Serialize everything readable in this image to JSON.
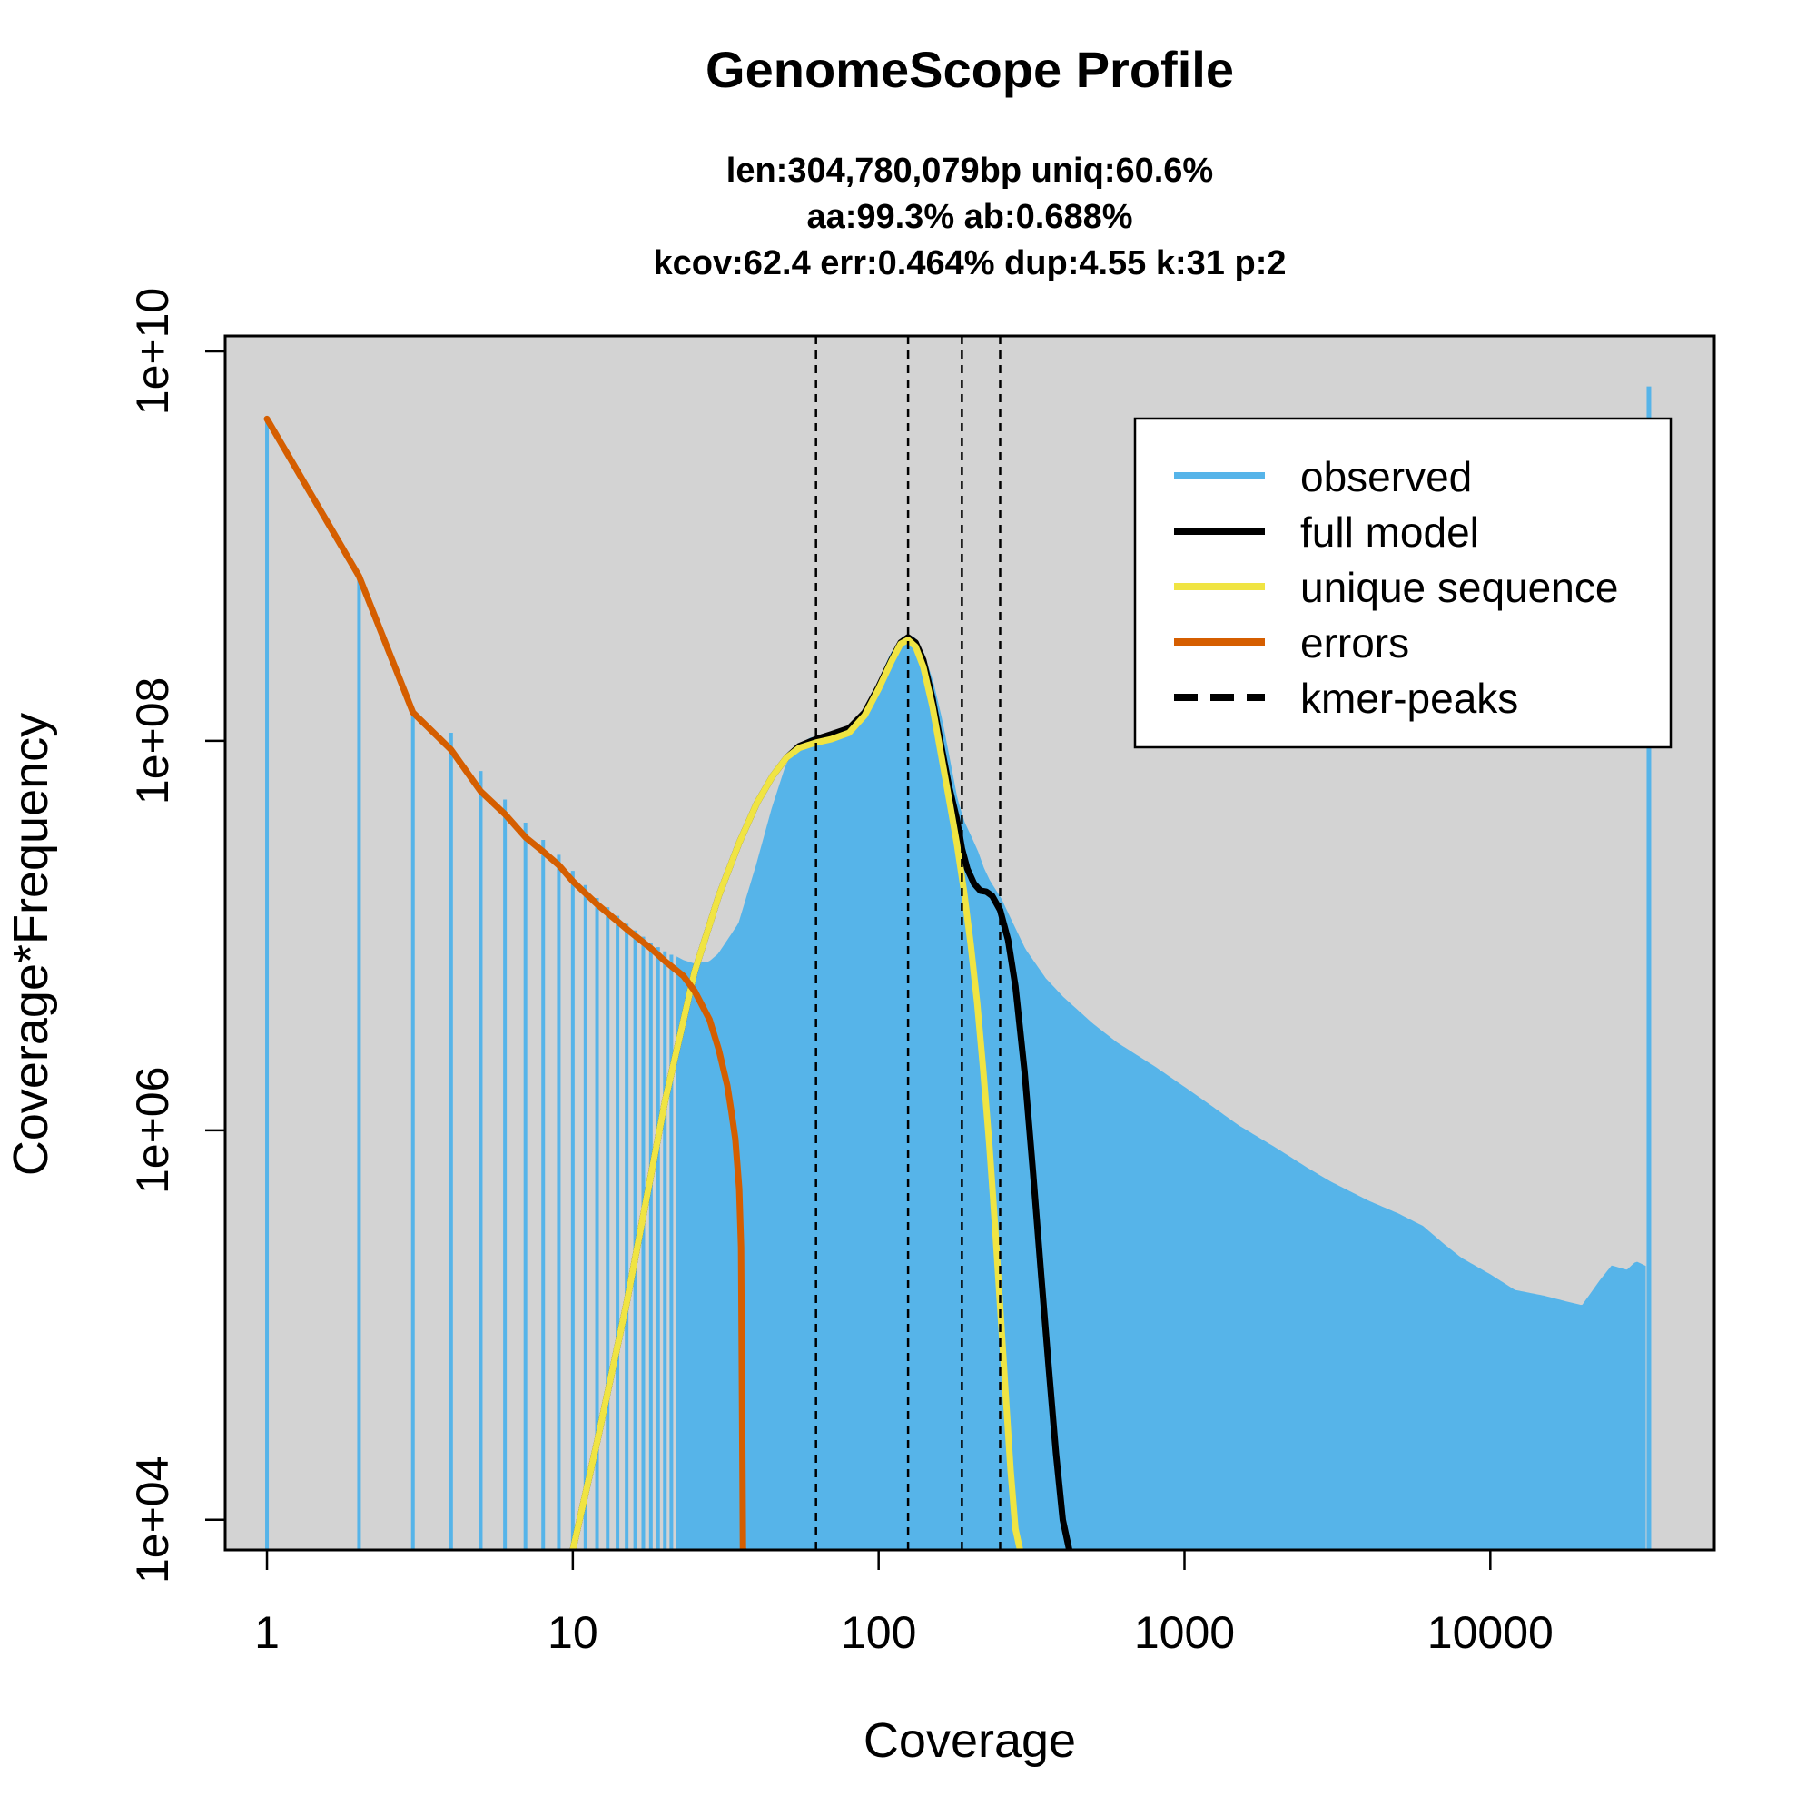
{
  "chart_data": {
    "type": "line",
    "title": "GenomeScope Profile",
    "subtitle_lines": [
      "len:304,780,079bp uniq:60.6%",
      "aa:99.3% ab:0.688%",
      "kcov:62.4 err:0.464%  dup:4.55  k:31 p:2"
    ],
    "xlabel": "Coverage",
    "ylabel": "Coverage*Frequency",
    "x_scale": "log",
    "y_scale": "log",
    "xlim": [
      0.73,
      54000
    ],
    "ylim": [
      7000,
      12000000000
    ],
    "x_ticks": [
      1,
      10,
      100,
      1000,
      10000
    ],
    "x_tick_labels": [
      "1",
      "10",
      "100",
      "1000",
      "10000"
    ],
    "y_ticks": [
      10000,
      1000000,
      100000000,
      10000000000
    ],
    "y_tick_labels": [
      "1e+04",
      "1e+06",
      "1e+08",
      "1e+10"
    ],
    "background": "#d3d3d3",
    "grid": false,
    "legend_position": "top-right",
    "legend": [
      {
        "label": "observed",
        "color": "#56b4e9",
        "style": "solid"
      },
      {
        "label": "full model",
        "color": "#000000",
        "style": "solid"
      },
      {
        "label": "unique sequence",
        "color": "#f0e442",
        "style": "solid"
      },
      {
        "label": "errors",
        "color": "#d55e00",
        "style": "solid"
      },
      {
        "label": "kmer-peaks",
        "color": "#000000",
        "style": "dashed"
      }
    ],
    "kmer_peaks": [
      62.4,
      124.8,
      187.2,
      249.6
    ],
    "series": [
      {
        "name": "observed",
        "color": "#56b4e9",
        "type": "histogram",
        "x": [
          1,
          2,
          3,
          4,
          5,
          6,
          7,
          8,
          9,
          10,
          12,
          15,
          18,
          20,
          23,
          25,
          28,
          30,
          35,
          40,
          45,
          50,
          55,
          60,
          65,
          70,
          80,
          90,
          100,
          110,
          120,
          130,
          140,
          150,
          160,
          170,
          180,
          190,
          200,
          210,
          220,
          230,
          250,
          270,
          300,
          350,
          400,
          500,
          600,
          700,
          800,
          1000,
          1200,
          1500,
          2000,
          2500,
          3000,
          4000,
          5000,
          6000,
          7000,
          8000,
          10000,
          12000,
          15000,
          18000,
          20000,
          23000,
          25000,
          28000,
          30000,
          32000,
          33000
        ],
        "values": [
          4500000000,
          700000000,
          140000000,
          110000000,
          70000000,
          50000000,
          38000000,
          31000000,
          26000000,
          21500000,
          15600000,
          11500000,
          9200000,
          8300000,
          7400000,
          7100000,
          7300000,
          8000000,
          11500000,
          23000000,
          45000000,
          75000000,
          95000000,
          103000000,
          105000000,
          106000000,
          110000000,
          140000000,
          200000000,
          280000000,
          340000000,
          340000000,
          280000000,
          200000000,
          130000000,
          80000000,
          50000000,
          38000000,
          32000000,
          27000000,
          22000000,
          19000000,
          15500000,
          12000000,
          8500000,
          6000000,
          4800000,
          3500000,
          2800000,
          2400000,
          2100000,
          1650000,
          1350000,
          1050000,
          800000,
          640000,
          540000,
          430000,
          370000,
          320000,
          260000,
          220000,
          180000,
          150000,
          140000,
          130000,
          125000,
          170000,
          200000,
          190000,
          210000,
          200000,
          6600000000
        ]
      },
      {
        "name": "full model",
        "color": "#000000",
        "x": [
          10,
          12,
          15,
          20,
          25,
          30,
          35,
          40,
          45,
          50,
          55,
          62.4,
          70,
          80,
          90,
          100,
          110,
          118,
          124.8,
          132,
          140,
          150,
          160,
          170,
          180,
          187.2,
          195,
          205,
          215,
          225,
          235,
          249.6,
          265,
          280,
          300,
          320,
          340,
          360,
          380,
          400,
          420
        ],
        "values": [
          7000,
          25000,
          130000,
          1400000,
          6500000,
          16000000,
          30000000,
          48000000,
          66000000,
          82000000,
          94000000,
          102000000,
          108000000,
          116000000,
          140000000,
          190000000,
          260000000,
          320000000,
          340000000,
          320000000,
          260000000,
          165000000,
          95000000,
          58000000,
          40000000,
          28000000,
          22000000,
          18500000,
          17000000,
          16800000,
          16000000,
          13500000,
          9500000,
          5500000,
          2000000,
          600000,
          180000,
          60000,
          22000,
          10000,
          7000
        ]
      },
      {
        "name": "unique sequence",
        "color": "#f0e442",
        "x": [
          10,
          12,
          15,
          20,
          25,
          30,
          35,
          40,
          45,
          50,
          55,
          62.4,
          70,
          80,
          90,
          100,
          110,
          118,
          124.8,
          132,
          140,
          150,
          160,
          170,
          180,
          190,
          200,
          210,
          220,
          230,
          240,
          250,
          260,
          270,
          280,
          290
        ],
        "values": [
          7000,
          25000,
          130000,
          1400000,
          6500000,
          16000000,
          30000000,
          48000000,
          66000000,
          82000000,
          92000000,
          98000000,
          102000000,
          110000000,
          135000000,
          185000000,
          255000000,
          315000000,
          330000000,
          305000000,
          240000000,
          150000000,
          85000000,
          50000000,
          30000000,
          17000000,
          9000000,
          4500000,
          2000000,
          850000,
          330000,
          120000,
          45000,
          18000,
          9000,
          7000
        ]
      },
      {
        "name": "errors",
        "color": "#d55e00",
        "x": [
          1,
          2,
          3,
          4,
          5,
          6,
          7,
          8,
          9,
          10,
          12,
          15,
          18,
          20,
          23,
          25,
          28,
          30,
          32,
          33,
          34,
          35,
          35.5,
          36,
          36.2
        ],
        "values": [
          4500000000,
          700000000,
          140000000,
          90000000,
          55000000,
          42000000,
          32000000,
          27000000,
          23000000,
          19000000,
          14500000,
          10800000,
          8600000,
          7400000,
          6200000,
          5200000,
          3700000,
          2600000,
          1700000,
          1250000,
          900000,
          500000,
          250000,
          7000,
          7000
        ]
      }
    ]
  }
}
